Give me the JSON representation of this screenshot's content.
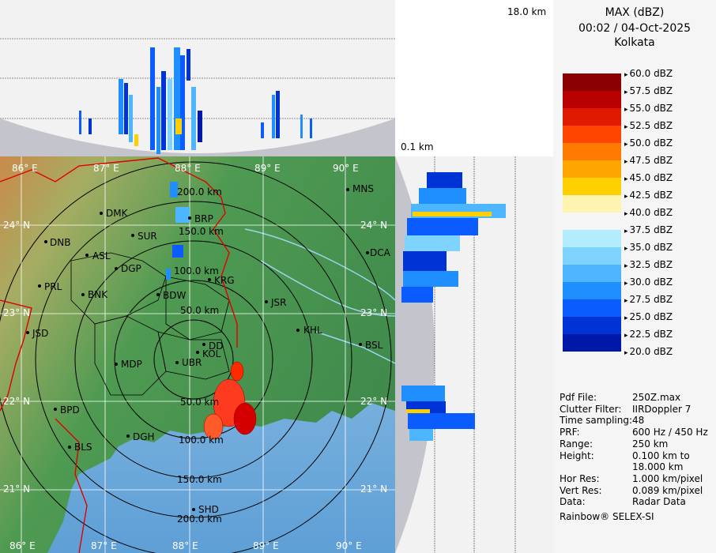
{
  "top_panel": {
    "height_top_label": "18.0 km"
  },
  "side_panel": {
    "height_bottom_label": "0.1 km"
  },
  "legend": {
    "title": "MAX (dBZ)",
    "datetime": "00:02 / 04-Oct-2025",
    "station": "Kolkata",
    "levels": [
      {
        "label": "60.0 dBZ",
        "color": ""
      },
      {
        "label": "57.5 dBZ",
        "color": "#8b0000"
      },
      {
        "label": "55.0 dBZ",
        "color": "#b80000"
      },
      {
        "label": "52.5 dBZ",
        "color": "#e01a00"
      },
      {
        "label": "50.0 dBZ",
        "color": "#ff4500"
      },
      {
        "label": "47.5 dBZ",
        "color": "#ff7a00"
      },
      {
        "label": "45.0 dBZ",
        "color": "#ffa500"
      },
      {
        "label": "42.5 dBZ",
        "color": "#ffd000"
      },
      {
        "label": "40.0 dBZ",
        "color": "#fff3b0"
      },
      {
        "label": "37.5 dBZ",
        "color": ""
      },
      {
        "label": "35.0 dBZ",
        "color": "#b4ecff"
      },
      {
        "label": "32.5 dBZ",
        "color": "#7ed3ff"
      },
      {
        "label": "30.0 dBZ",
        "color": "#4db6ff"
      },
      {
        "label": "27.5 dBZ",
        "color": "#1f8fff"
      },
      {
        "label": "25.0 dBZ",
        "color": "#0a5cff"
      },
      {
        "label": "22.5 dBZ",
        "color": "#0033d6"
      },
      {
        "label": "20.0 dBZ",
        "color": "#0018a8"
      }
    ]
  },
  "info": {
    "rows": [
      {
        "key": "Pdf File:",
        "value": "250Z.max"
      },
      {
        "key": "Clutter Filter:",
        "value": "IIRDoppler 7"
      },
      {
        "key": "Time sampling:",
        "value": "48"
      },
      {
        "key": "PRF:",
        "value": "600 Hz / 450 Hz"
      },
      {
        "key": "Range:",
        "value": "250 km"
      },
      {
        "key": "Height:",
        "value": "0.100 km to"
      },
      {
        "key": "",
        "value": "18.000 km"
      },
      {
        "key": "Hor Res:",
        "value": "1.000 km/pixel"
      },
      {
        "key": "Vert Res:",
        "value": "0.089 km/pixel"
      },
      {
        "key": "Data:",
        "value": "Radar Data"
      }
    ],
    "footer": "Rainbow® SELEX-SI"
  },
  "map": {
    "lon_labels_top": [
      "86° E",
      "87° E",
      "88° E",
      "89° E",
      "90° E"
    ],
    "lon_labels_bottom": [
      "86° E",
      "87° E",
      "88° E",
      "89° E",
      "90° E"
    ],
    "lat_labels_left": [
      "24° N",
      "23° N",
      "22° N",
      "21° N"
    ],
    "lat_labels_right": [
      "24° N",
      "23° N",
      "22° N",
      "21° N"
    ],
    "range_labels": [
      "50.0 km",
      "100.0 km",
      "150.0 km",
      "200.0 km"
    ],
    "range_labels_north": [
      "200.0 km",
      "150.0 km",
      "100.0 km",
      "50.0 km"
    ],
    "cities": [
      {
        "name": "MNS"
      },
      {
        "name": "DMK"
      },
      {
        "name": "BRP"
      },
      {
        "name": "SUR"
      },
      {
        "name": "DNB"
      },
      {
        "name": "ASL"
      },
      {
        "name": "DGP"
      },
      {
        "name": "DCA"
      },
      {
        "name": "KRG"
      },
      {
        "name": "PRL"
      },
      {
        "name": "BNK"
      },
      {
        "name": "BDW"
      },
      {
        "name": "JSR"
      },
      {
        "name": "KHL"
      },
      {
        "name": "JSD"
      },
      {
        "name": "DD"
      },
      {
        "name": "KOL"
      },
      {
        "name": "BSL"
      },
      {
        "name": "MDP"
      },
      {
        "name": "UBR"
      },
      {
        "name": "BPD"
      },
      {
        "name": "DGH"
      },
      {
        "name": "BLS"
      },
      {
        "name": "SHD"
      }
    ]
  }
}
